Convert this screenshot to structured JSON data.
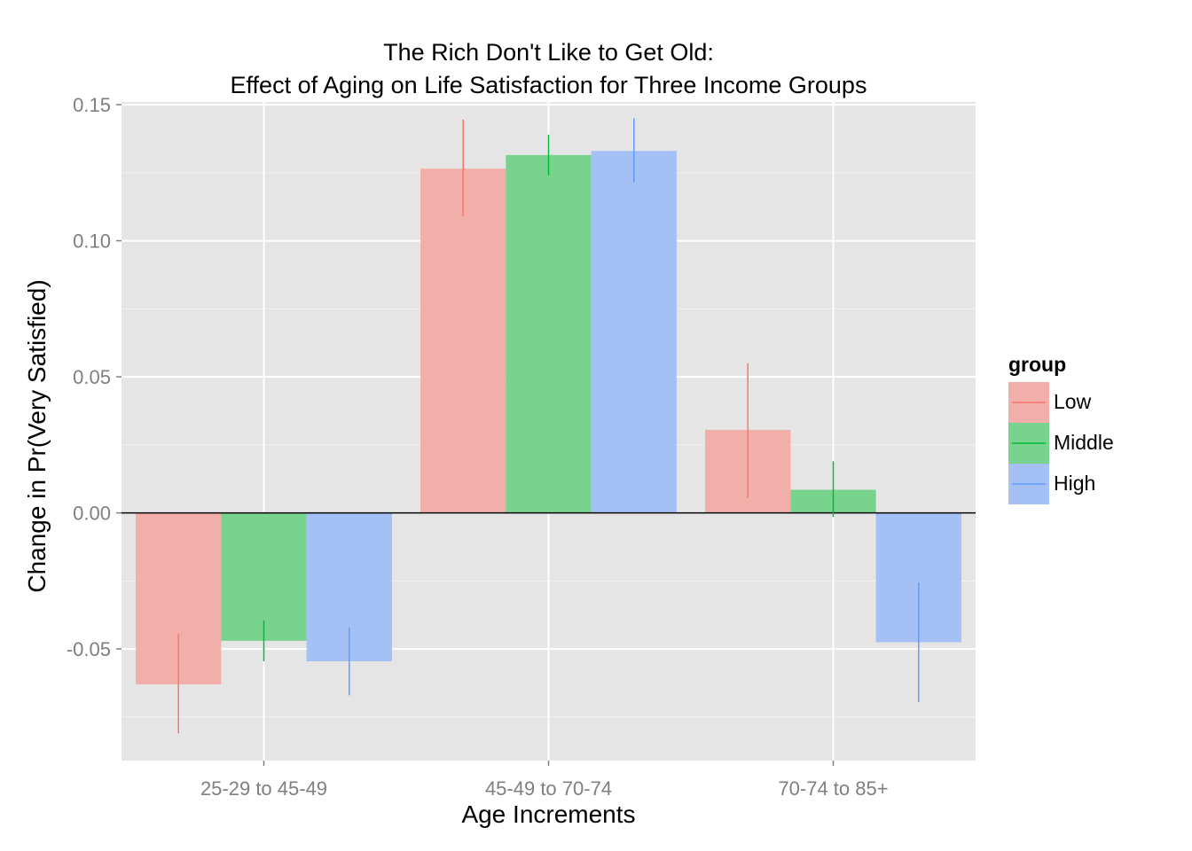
{
  "chart_data": {
    "type": "bar",
    "title": [
      "The Rich Don't Like to Get Old:",
      "Effect of Aging on Life Satisfaction for Three Income Groups"
    ],
    "xlabel": "Age Increments",
    "ylabel": "Change in Pr(Very Satisfied)",
    "categories": [
      "25-29 to 45-49",
      "45-49 to 70-74",
      "70-74 to 85+"
    ],
    "ylim": [
      -0.091,
      0.151
    ],
    "yticks": [
      -0.05,
      0.0,
      0.05,
      0.1,
      0.15
    ],
    "ytick_labels": [
      "-0.05",
      "0.00",
      "0.05",
      "0.10",
      "0.15"
    ],
    "grid": true,
    "legend": {
      "title": "group",
      "placement": "right"
    },
    "series": [
      {
        "name": "Low",
        "color": "#F8766D",
        "fill": "#F2AEA9",
        "values": [
          -0.063,
          0.1265,
          0.0305
        ],
        "err_low": [
          -0.081,
          0.109,
          0.0055
        ],
        "err_high": [
          -0.0445,
          0.1445,
          0.055
        ]
      },
      {
        "name": "Middle",
        "color": "#00BA38",
        "fill": "#78D38E",
        "values": [
          -0.047,
          0.1315,
          0.0085
        ],
        "err_low": [
          -0.0545,
          0.124,
          -0.0015
        ],
        "err_high": [
          -0.0395,
          0.139,
          0.019
        ]
      },
      {
        "name": "High",
        "color": "#619CFF",
        "fill": "#A4C0F5",
        "values": [
          -0.0545,
          0.133,
          -0.0475
        ],
        "err_low": [
          -0.067,
          0.1215,
          -0.0695
        ],
        "err_high": [
          -0.042,
          0.145,
          -0.0255
        ]
      }
    ]
  }
}
